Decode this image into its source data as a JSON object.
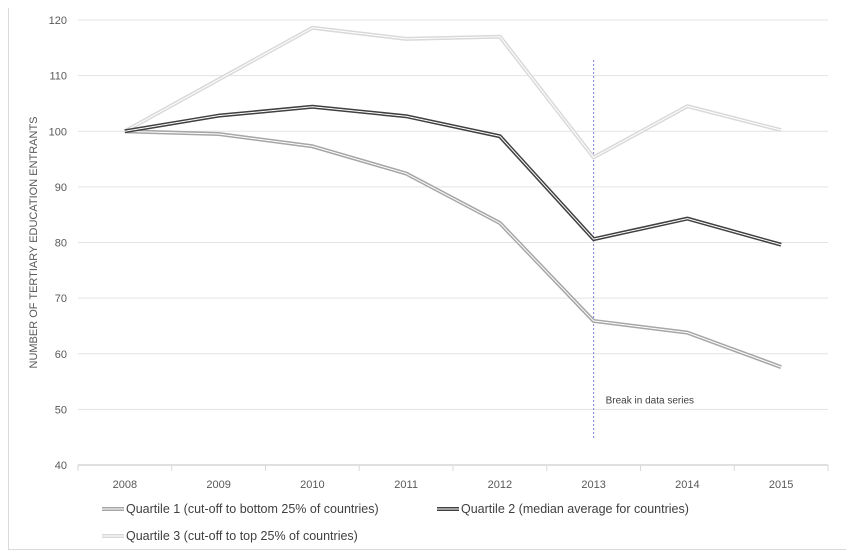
{
  "chart_data": {
    "type": "line",
    "title": "",
    "xlabel": "",
    "ylabel": "NUMBER OF TERTIARY EDUCATION ENTRANTS",
    "x": [
      "2008",
      "2009",
      "2010",
      "2011",
      "2012",
      "2013",
      "2014",
      "2015"
    ],
    "ylim": [
      40,
      120
    ],
    "yticks": [
      "40",
      "50",
      "60",
      "70",
      "80",
      "90",
      "100",
      "110",
      "120"
    ],
    "grid": "horizontal",
    "series": [
      {
        "name": "Quartile 1 (cut-off to bottom 25% of countries)",
        "color": "#a6a6a6",
        "values": [
          100,
          99.5,
          97.3,
          92.4,
          83.5,
          65.9,
          63.8,
          57.6
        ]
      },
      {
        "name": "Quartile 2 (median average for countries)",
        "color": "#404040",
        "values": [
          100,
          102.8,
          104.4,
          102.7,
          99.1,
          80.6,
          84.3,
          79.6
        ]
      },
      {
        "name": "Quartile 3 (cut-off to top 25% of countries)",
        "color": "#d9d9d9",
        "values": [
          100,
          109.3,
          118.6,
          116.6,
          117.0,
          95.3,
          104.5,
          100.2
        ]
      }
    ],
    "annotation": {
      "text": "Break in data series",
      "x": "2013"
    },
    "legend_position": "bottom"
  }
}
